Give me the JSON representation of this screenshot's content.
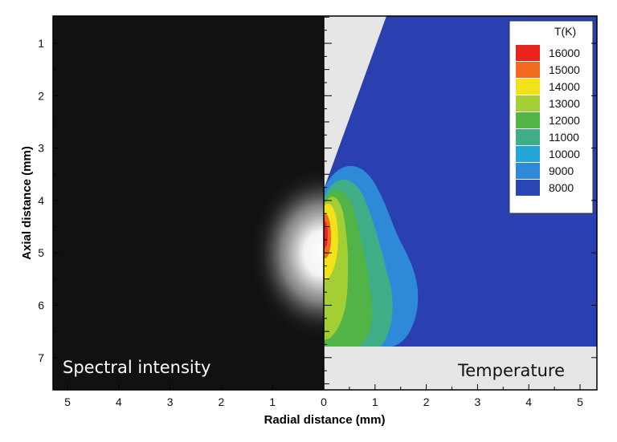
{
  "chart_data": {
    "type": "heatmap",
    "xlabel": "Radial distance (mm)",
    "ylabel": "Axial distance (mm)",
    "left_panel_label": "Spectral intensity",
    "right_panel_label": "Temperature",
    "x_left_ticks": [
      "5",
      "4",
      "3",
      "2",
      "1"
    ],
    "x_right_ticks": [
      "0",
      "1",
      "2",
      "3",
      "4",
      "5"
    ],
    "y_ticks": [
      "1",
      "2",
      "3",
      "4",
      "5",
      "6",
      "7"
    ],
    "xlim": [
      0,
      5.3
    ],
    "ylim": [
      0.5,
      7.7
    ],
    "legend": {
      "title": "T(K)",
      "placement": "top-right",
      "levels": [
        {
          "label": "16000",
          "color": "#e8221c"
        },
        {
          "label": "15000",
          "color": "#f26a1e"
        },
        {
          "label": "14000",
          "color": "#f2e21a"
        },
        {
          "label": "13000",
          "color": "#a3cf35"
        },
        {
          "label": "12000",
          "color": "#52b447"
        },
        {
          "label": "11000",
          "color": "#3fae86"
        },
        {
          "label": "10000",
          "color": "#27a5d8"
        },
        {
          "label": "9000",
          "color": "#2e8ad9"
        },
        {
          "label": "8000",
          "color": "#2a46b4"
        }
      ]
    },
    "background_level_color": "#2a3fb0"
  }
}
